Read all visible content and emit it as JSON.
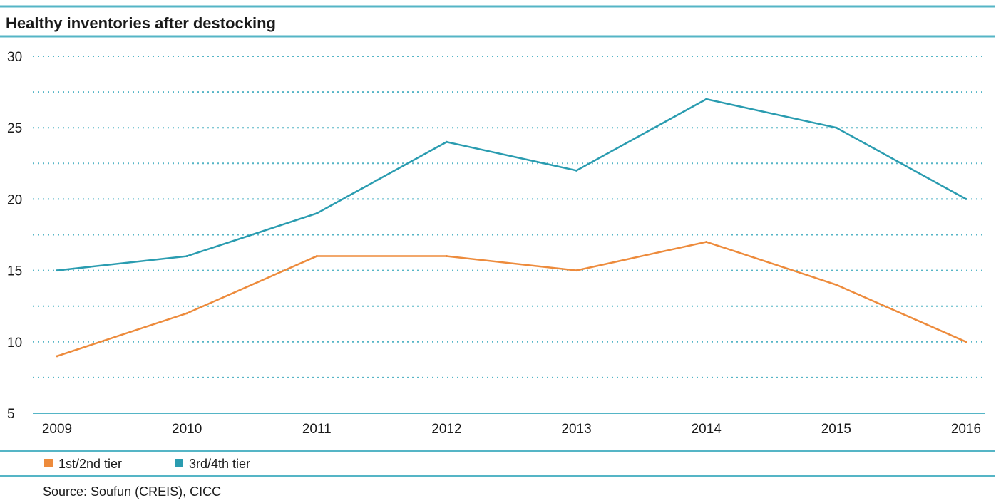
{
  "chart_data": {
    "type": "line",
    "title": "Healthy inventories after destocking",
    "categories": [
      "2009",
      "2010",
      "2011",
      "2012",
      "2013",
      "2014",
      "2015",
      "2016"
    ],
    "series": [
      {
        "name": "1st/2nd tier",
        "color": "#ed8b3c",
        "values": [
          9,
          12,
          16,
          16,
          15,
          17,
          14,
          10
        ]
      },
      {
        "name": "3rd/4th tier",
        "color": "#2a9cb0",
        "values": [
          15,
          16,
          19,
          24,
          22,
          27,
          25,
          20
        ]
      }
    ],
    "y_ticks": [
      "5",
      "10",
      "15",
      "20",
      "25",
      "30"
    ],
    "ylim": [
      5,
      30
    ],
    "grid": true,
    "legend_position": "bottom-left",
    "source": "Source: Soufun (CREIS), CICC",
    "rule_color": "#55b5c6",
    "grid_color": "#55b5c6"
  }
}
